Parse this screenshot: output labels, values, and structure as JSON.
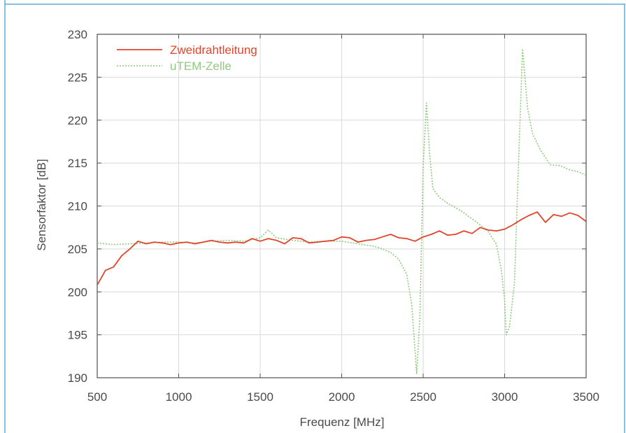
{
  "colors": {
    "frame_border": "#5aaed8",
    "series_red": "#e0452b",
    "series_green": "#8fca7e",
    "grid": "#d9d9d9",
    "axis": "#505050",
    "text": "#4a4a4a"
  },
  "chart_data": {
    "type": "line",
    "title": "",
    "xlabel": "Frequenz [MHz]",
    "ylabel": "Sensorfaktor [dB]",
    "xlim": [
      500,
      3500
    ],
    "ylim": [
      190,
      230
    ],
    "xticks": [
      500,
      1000,
      1500,
      2000,
      2500,
      3000,
      3500
    ],
    "yticks": [
      190,
      195,
      200,
      205,
      210,
      215,
      220,
      225,
      230
    ],
    "grid": true,
    "legend_position": "top-left",
    "series": [
      {
        "name": "Zweidrahtleitung",
        "color": "#e0452b",
        "style": "solid",
        "points": [
          [
            500,
            200.8
          ],
          [
            550,
            202.5
          ],
          [
            600,
            202.9
          ],
          [
            650,
            204.2
          ],
          [
            700,
            205.0
          ],
          [
            750,
            205.9
          ],
          [
            800,
            205.6
          ],
          [
            850,
            205.8
          ],
          [
            900,
            205.7
          ],
          [
            950,
            205.5
          ],
          [
            1000,
            205.7
          ],
          [
            1050,
            205.8
          ],
          [
            1100,
            205.6
          ],
          [
            1150,
            205.8
          ],
          [
            1200,
            206.0
          ],
          [
            1250,
            205.8
          ],
          [
            1300,
            205.7
          ],
          [
            1350,
            205.8
          ],
          [
            1400,
            205.7
          ],
          [
            1450,
            206.2
          ],
          [
            1500,
            205.9
          ],
          [
            1550,
            206.2
          ],
          [
            1600,
            206.0
          ],
          [
            1650,
            205.6
          ],
          [
            1700,
            206.3
          ],
          [
            1750,
            206.2
          ],
          [
            1800,
            205.7
          ],
          [
            1850,
            205.8
          ],
          [
            1900,
            205.9
          ],
          [
            1950,
            206.0
          ],
          [
            2000,
            206.4
          ],
          [
            2050,
            206.3
          ],
          [
            2100,
            205.8
          ],
          [
            2150,
            206.0
          ],
          [
            2200,
            206.1
          ],
          [
            2250,
            206.4
          ],
          [
            2300,
            206.7
          ],
          [
            2350,
            206.3
          ],
          [
            2400,
            206.2
          ],
          [
            2450,
            205.9
          ],
          [
            2500,
            206.4
          ],
          [
            2550,
            206.7
          ],
          [
            2600,
            207.1
          ],
          [
            2650,
            206.6
          ],
          [
            2700,
            206.7
          ],
          [
            2750,
            207.1
          ],
          [
            2800,
            206.8
          ],
          [
            2850,
            207.5
          ],
          [
            2900,
            207.2
          ],
          [
            2950,
            207.1
          ],
          [
            3000,
            207.3
          ],
          [
            3050,
            207.8
          ],
          [
            3100,
            208.4
          ],
          [
            3150,
            208.9
          ],
          [
            3200,
            209.3
          ],
          [
            3250,
            208.1
          ],
          [
            3300,
            209.0
          ],
          [
            3350,
            208.8
          ],
          [
            3400,
            209.2
          ],
          [
            3450,
            208.9
          ],
          [
            3500,
            208.2
          ]
        ]
      },
      {
        "name": "uTEM-Zelle",
        "color": "#8fca7e",
        "style": "dotted",
        "points": [
          [
            500,
            205.7
          ],
          [
            600,
            205.5
          ],
          [
            700,
            205.6
          ],
          [
            800,
            205.7
          ],
          [
            900,
            205.8
          ],
          [
            1000,
            205.8
          ],
          [
            1100,
            205.7
          ],
          [
            1200,
            205.9
          ],
          [
            1300,
            206.0
          ],
          [
            1400,
            205.9
          ],
          [
            1500,
            206.3
          ],
          [
            1550,
            207.2
          ],
          [
            1600,
            206.3
          ],
          [
            1700,
            206.0
          ],
          [
            1800,
            205.8
          ],
          [
            1900,
            205.9
          ],
          [
            2000,
            205.9
          ],
          [
            2100,
            205.6
          ],
          [
            2200,
            205.3
          ],
          [
            2250,
            205.0
          ],
          [
            2300,
            204.6
          ],
          [
            2350,
            203.8
          ],
          [
            2400,
            202.0
          ],
          [
            2430,
            198.5
          ],
          [
            2460,
            190.5
          ],
          [
            2480,
            197.0
          ],
          [
            2500,
            214.5
          ],
          [
            2520,
            222.0
          ],
          [
            2540,
            216.0
          ],
          [
            2560,
            212.0
          ],
          [
            2600,
            211.0
          ],
          [
            2650,
            210.3
          ],
          [
            2700,
            209.8
          ],
          [
            2750,
            209.2
          ],
          [
            2800,
            208.5
          ],
          [
            2850,
            207.8
          ],
          [
            2900,
            207.0
          ],
          [
            2950,
            205.5
          ],
          [
            2980,
            202.5
          ],
          [
            3000,
            199.0
          ],
          [
            3010,
            195.0
          ],
          [
            3030,
            196.0
          ],
          [
            3060,
            201.0
          ],
          [
            3080,
            212.0
          ],
          [
            3110,
            228.3
          ],
          [
            3140,
            221.5
          ],
          [
            3170,
            218.5
          ],
          [
            3220,
            216.5
          ],
          [
            3280,
            214.8
          ],
          [
            3340,
            214.7
          ],
          [
            3400,
            214.2
          ],
          [
            3450,
            214.0
          ],
          [
            3500,
            213.6
          ]
        ]
      }
    ]
  }
}
